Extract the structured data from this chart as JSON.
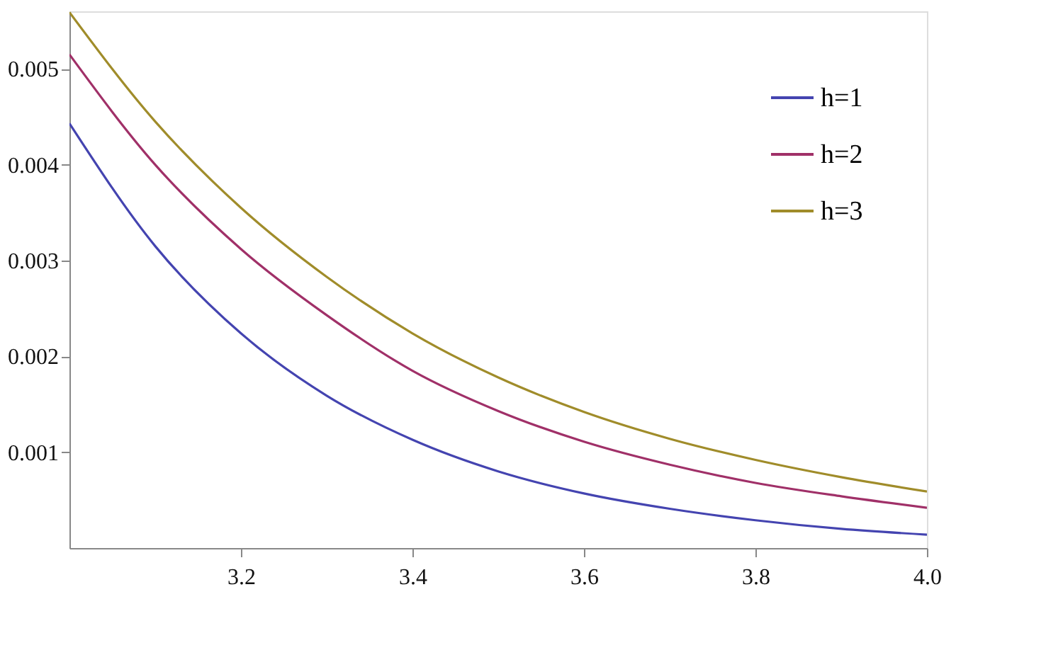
{
  "chart_data": {
    "type": "line",
    "x": [
      3.0,
      3.1,
      3.2,
      3.3,
      3.4,
      3.5,
      3.6,
      3.7,
      3.8,
      3.9,
      4.0
    ],
    "series": [
      {
        "name": "h=1",
        "color": "#4444b0",
        "values": [
          0.00443,
          0.00315,
          0.00224,
          0.00159,
          0.00113,
          0.0008,
          0.00057,
          0.00041,
          0.00029,
          0.0002,
          0.00014
        ]
      },
      {
        "name": "h=2",
        "color": "#a03068",
        "values": [
          0.00515,
          0.004,
          0.00312,
          0.00243,
          0.00185,
          0.00143,
          0.00111,
          0.00087,
          0.00068,
          0.00054,
          0.00042
        ]
      },
      {
        "name": "h=3",
        "color": "#a08c2a",
        "values": [
          0.00559,
          0.00445,
          0.00355,
          0.00283,
          0.00224,
          0.00178,
          0.00142,
          0.00114,
          0.00092,
          0.00074,
          0.00059
        ]
      }
    ],
    "xlim": [
      3.0,
      4.0
    ],
    "xticks": [
      3.2,
      3.4,
      3.6,
      3.8,
      {
        "value": 4.0,
        "label": "4.0"
      }
    ],
    "ylim": [
      0,
      0.0056
    ],
    "yticks": [
      0.001,
      0.002,
      0.003,
      0.004,
      0.005
    ],
    "grid": false,
    "legend": "top right",
    "marker": "none",
    "line_style": "solid"
  }
}
